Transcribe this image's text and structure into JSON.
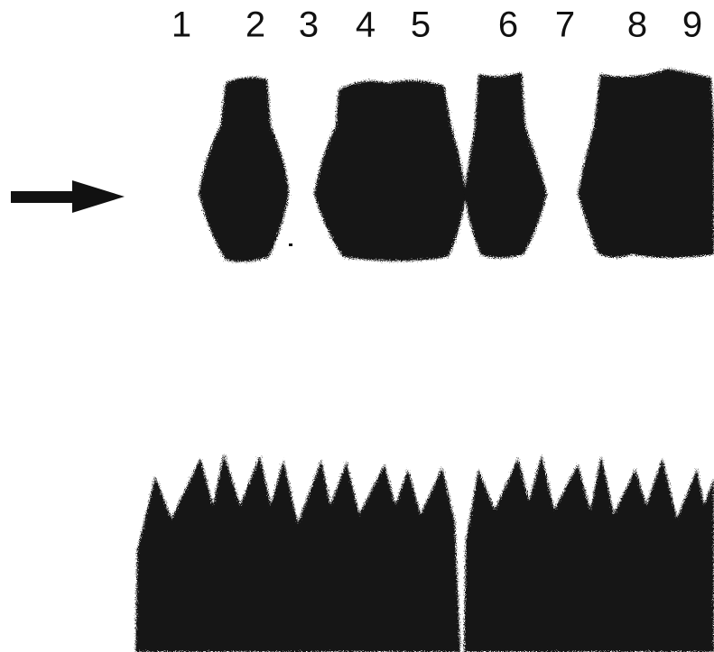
{
  "lanes": {
    "labels": [
      "1",
      "2",
      "3",
      "4",
      "5",
      "6",
      "7",
      "8",
      "9"
    ]
  }
}
